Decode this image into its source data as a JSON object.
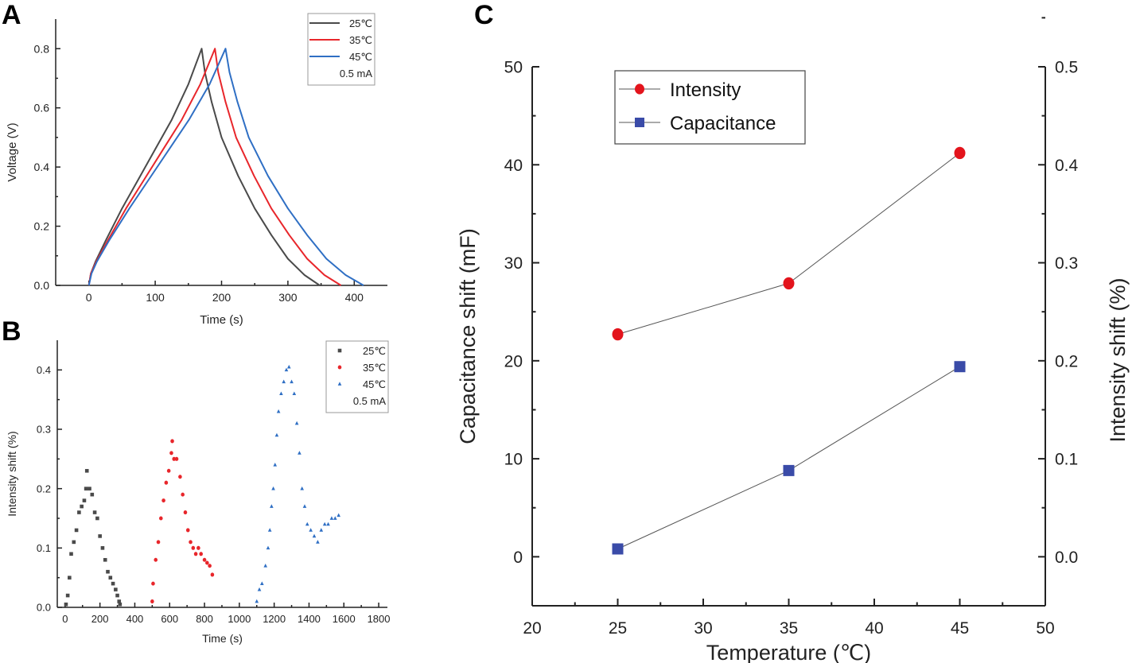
{
  "panels": {
    "a": "A",
    "b": "B",
    "c": "C"
  },
  "chart_data": [
    {
      "id": "A",
      "type": "line",
      "xlabel": "Time (s)",
      "ylabel": "Voltage (V)",
      "xlim": [
        -50,
        450
      ],
      "ylim": [
        0,
        0.9
      ],
      "xticks": [
        0,
        100,
        200,
        300,
        400
      ],
      "xtick_labels": [
        "0",
        "100",
        "200",
        "300",
        "400"
      ],
      "yticks": [
        0,
        0.2,
        0.4,
        0.6,
        0.8
      ],
      "ytick_labels": [
        "0.0",
        "0.2",
        "0.4",
        "0.6",
        "0.8"
      ],
      "legend": {
        "position": "top-right",
        "note": "0.5 mA"
      },
      "series": [
        {
          "name": "25℃",
          "color": "#4a4a4a",
          "x": [
            0,
            3,
            10,
            25,
            50,
            75,
            100,
            125,
            150,
            170,
            175,
            185,
            200,
            225,
            250,
            275,
            300,
            325,
            348
          ],
          "y": [
            0,
            0.04,
            0.08,
            0.15,
            0.26,
            0.36,
            0.46,
            0.56,
            0.68,
            0.8,
            0.72,
            0.62,
            0.5,
            0.37,
            0.26,
            0.17,
            0.09,
            0.035,
            0
          ]
        },
        {
          "name": "35℃",
          "color": "#e8262b",
          "x": [
            0,
            3,
            11,
            28,
            56,
            84,
            112,
            140,
            168,
            190,
            195,
            206,
            222,
            249,
            275,
            302,
            329,
            355,
            380
          ],
          "y": [
            0,
            0.04,
            0.08,
            0.15,
            0.26,
            0.36,
            0.46,
            0.56,
            0.68,
            0.8,
            0.72,
            0.62,
            0.5,
            0.37,
            0.26,
            0.17,
            0.09,
            0.035,
            0
          ]
        },
        {
          "name": "45℃",
          "color": "#2f6fc4",
          "x": [
            0,
            4,
            12,
            30,
            61,
            91,
            121,
            151,
            182,
            206,
            212,
            224,
            241,
            270,
            300,
            329,
            358,
            387,
            414
          ],
          "y": [
            0,
            0.04,
            0.08,
            0.15,
            0.26,
            0.36,
            0.46,
            0.56,
            0.68,
            0.8,
            0.72,
            0.62,
            0.5,
            0.37,
            0.26,
            0.17,
            0.09,
            0.035,
            0
          ]
        }
      ]
    },
    {
      "id": "B",
      "type": "scatter",
      "xlabel": "Time (s)",
      "ylabel": "Intensity shift (%)",
      "xlim": [
        -45,
        1850
      ],
      "ylim": [
        0,
        0.45
      ],
      "xticks": [
        0,
        200,
        400,
        600,
        800,
        1000,
        1200,
        1400,
        1600,
        1800
      ],
      "xtick_labels": [
        "0",
        "200",
        "400",
        "600",
        "800",
        "1000",
        "1200",
        "1400",
        "1600",
        "1800"
      ],
      "yticks": [
        0,
        0.1,
        0.2,
        0.3,
        0.4
      ],
      "ytick_labels": [
        "0.0",
        "0.1",
        "0.2",
        "0.3",
        "0.4"
      ],
      "legend": {
        "position": "top-right",
        "note": "0.5 mA"
      },
      "series": [
        {
          "name": "25℃",
          "color": "#4a4a4a",
          "marker": "square",
          "x": [
            5,
            15,
            25,
            35,
            50,
            65,
            80,
            95,
            110,
            120,
            125,
            140,
            155,
            170,
            185,
            200,
            215,
            230,
            245,
            260,
            275,
            290,
            300,
            310,
            315
          ],
          "y": [
            0.005,
            0.02,
            0.05,
            0.09,
            0.11,
            0.13,
            0.16,
            0.17,
            0.18,
            0.2,
            0.23,
            0.2,
            0.19,
            0.16,
            0.15,
            0.12,
            0.1,
            0.08,
            0.06,
            0.05,
            0.04,
            0.03,
            0.02,
            0.01,
            0.005
          ]
        },
        {
          "name": "35℃",
          "color": "#e8262b",
          "marker": "circle",
          "x": [
            500,
            505,
            520,
            535,
            550,
            565,
            580,
            595,
            610,
            615,
            625,
            640,
            660,
            675,
            690,
            705,
            720,
            735,
            750,
            765,
            780,
            800,
            815,
            830,
            845
          ],
          "y": [
            0.01,
            0.04,
            0.08,
            0.11,
            0.15,
            0.18,
            0.21,
            0.23,
            0.26,
            0.28,
            0.25,
            0.25,
            0.22,
            0.19,
            0.16,
            0.13,
            0.11,
            0.1,
            0.09,
            0.1,
            0.09,
            0.08,
            0.075,
            0.07,
            0.055
          ]
        },
        {
          "name": "45℃",
          "color": "#2f6fc4",
          "marker": "triangle",
          "x": [
            1100,
            1115,
            1130,
            1150,
            1165,
            1175,
            1185,
            1195,
            1205,
            1215,
            1225,
            1240,
            1255,
            1270,
            1285,
            1300,
            1315,
            1330,
            1345,
            1360,
            1375,
            1390,
            1410,
            1430,
            1450,
            1470,
            1490,
            1510,
            1530,
            1550,
            1570
          ],
          "y": [
            0.01,
            0.03,
            0.04,
            0.07,
            0.1,
            0.13,
            0.17,
            0.2,
            0.24,
            0.29,
            0.33,
            0.36,
            0.38,
            0.4,
            0.405,
            0.38,
            0.36,
            0.31,
            0.26,
            0.2,
            0.17,
            0.14,
            0.13,
            0.12,
            0.11,
            0.13,
            0.14,
            0.14,
            0.15,
            0.15,
            0.155
          ]
        }
      ]
    },
    {
      "id": "C",
      "type": "line",
      "xlabel": "Temperature (℃)",
      "ylabel": "Capacitance shift (mF)",
      "ylabel_right": "Intensity shift (%)",
      "xlim": [
        20,
        50
      ],
      "ylim": [
        -5,
        50
      ],
      "ylim_right": [
        -0.05,
        0.5
      ],
      "xticks": [
        20,
        25,
        30,
        35,
        40,
        45,
        50
      ],
      "xtick_labels": [
        "20",
        "25",
        "30",
        "35",
        "40",
        "45",
        "50"
      ],
      "yticks": [
        0,
        10,
        20,
        30,
        40,
        50
      ],
      "ytick_labels": [
        "0",
        "10",
        "20",
        "30",
        "40",
        "50"
      ],
      "yticks_right": [
        0,
        0.1,
        0.2,
        0.3,
        0.4,
        0.5
      ],
      "ytick_labels_right": [
        "0.0",
        "0.1",
        "0.2",
        "0.3",
        "0.4",
        "0.5"
      ],
      "legend": {
        "position": "top-left"
      },
      "series": [
        {
          "name": "Intensity",
          "color": "#e3141c",
          "marker": "circle",
          "axis": "right",
          "x": [
            25,
            35,
            45
          ],
          "y": [
            0.227,
            0.279,
            0.412
          ]
        },
        {
          "name": "Capacitance",
          "color": "#3a4ba8",
          "marker": "square",
          "axis": "left",
          "x": [
            25,
            35,
            45
          ],
          "y": [
            0.8,
            8.8,
            19.4
          ]
        }
      ]
    }
  ]
}
